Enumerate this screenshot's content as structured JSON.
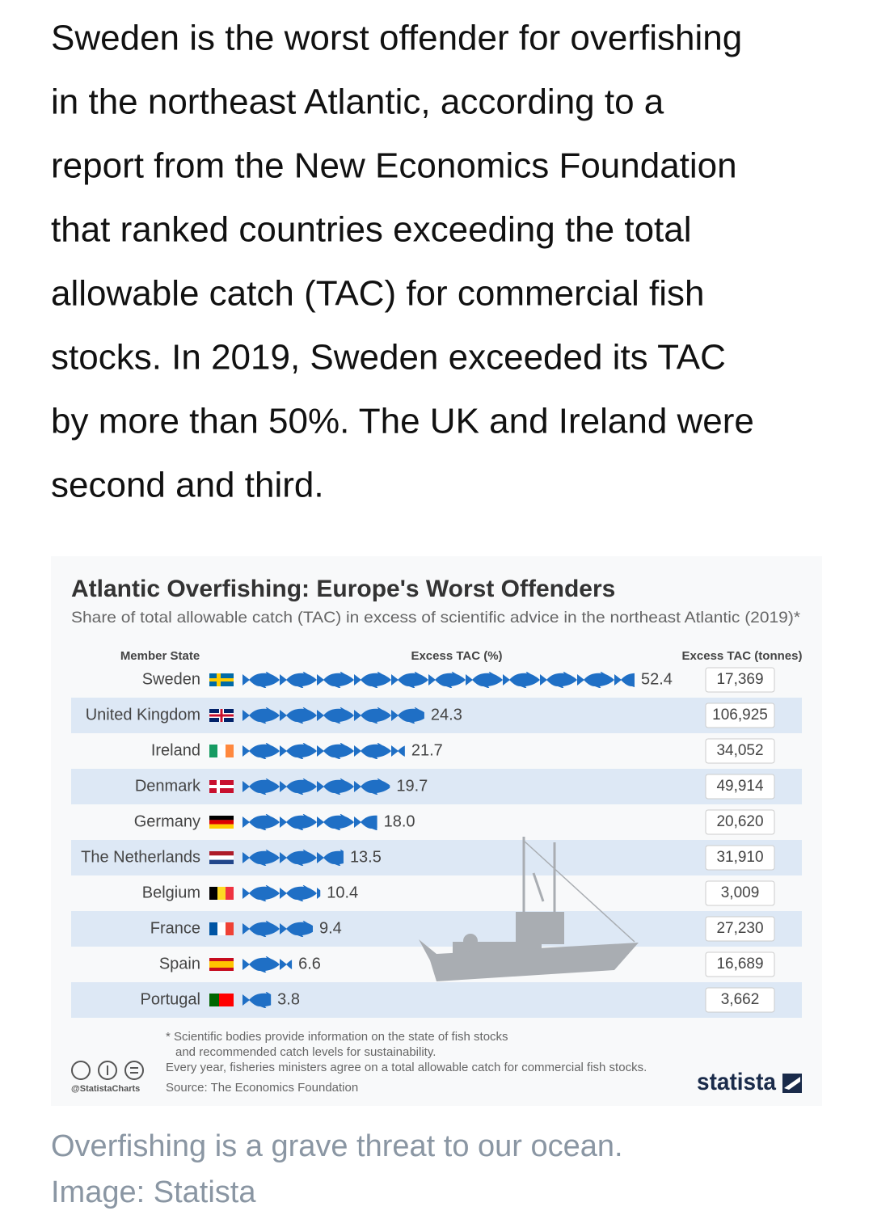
{
  "article_lines": [
    "Sweden is the worst offender for overfishing",
    "in the northeast Atlantic, according to a",
    "report from the New Economics Foundation",
    "that ranked countries exceeding the total",
    "allowable catch (TAC) for commercial fish",
    "stocks. In 2019, Sweden exceeded its TAC",
    "by more than 50%. The UK and Ireland were",
    "second and third."
  ],
  "chart_data": {
    "type": "bar",
    "title": "Atlantic Overfishing: Europe's Worst Offenders",
    "subtitle": "Share of total allowable catch (TAC) in excess of scientific advice in the northeast Atlantic (2019)*",
    "category_header": "Member State",
    "categories": [
      "Sweden",
      "United Kingdom",
      "Ireland",
      "Denmark",
      "Germany",
      "The Netherlands",
      "Belgium",
      "France",
      "Spain",
      "Portugal"
    ],
    "series": [
      {
        "name": "Excess TAC (%)",
        "color": "#1f6fc5",
        "values": [
          52.4,
          24.3,
          21.7,
          19.7,
          18.0,
          13.5,
          10.4,
          9.4,
          6.6,
          3.8
        ],
        "value_labels": [
          "52.4",
          "24.3",
          "21.7",
          "19.7",
          "18.0",
          "13.5",
          "10.4",
          "9.4",
          "6.6",
          "3.8"
        ]
      }
    ],
    "tonnes": {
      "name": "Excess TAC (tonnes)",
      "values": [
        17369,
        106925,
        34052,
        49914,
        20620,
        31910,
        3009,
        27230,
        16689,
        3662
      ],
      "value_labels": [
        "17,369",
        "106,925",
        "34,052",
        "49,914",
        "20,620",
        "31,910",
        "3,009",
        "27,230",
        "16,689",
        "3,662"
      ]
    },
    "notes": [
      "* Scientific bodies provide information on the state of fish stocks",
      "and recommended catch levels for sustainability.",
      "Every year, fisheries ministers agree on a total allowable catch for commercial fish stocks."
    ],
    "source": "Source: The Economics Foundation",
    "credit": "@StatistaCharts",
    "logo": "statista"
  },
  "caption_lines": [
    "Overfishing is a grave threat to our ocean.",
    "Image: Statista"
  ]
}
